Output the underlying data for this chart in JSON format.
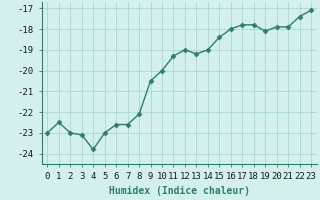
{
  "x": [
    0,
    1,
    2,
    3,
    4,
    5,
    6,
    7,
    8,
    9,
    10,
    11,
    12,
    13,
    14,
    15,
    16,
    17,
    18,
    19,
    20,
    21,
    22,
    23
  ],
  "y": [
    -23.0,
    -22.5,
    -23.0,
    -23.1,
    -23.8,
    -23.0,
    -22.6,
    -22.6,
    -22.1,
    -20.5,
    -20.0,
    -19.3,
    -19.0,
    -19.2,
    -19.0,
    -18.4,
    -18.0,
    -17.8,
    -17.8,
    -18.1,
    -17.9,
    -17.9,
    -17.4,
    -17.1
  ],
  "line_color": "#2e7d6e",
  "marker": "D",
  "markersize": 2.5,
  "linewidth": 1.0,
  "background_color": "#d4f0ec",
  "grid_color": "#a8d8d0",
  "xlabel": "Humidex (Indice chaleur)",
  "xlabel_fontsize": 7,
  "tick_fontsize": 6.5,
  "yticks": [
    -24,
    -23,
    -22,
    -21,
    -20,
    -19,
    -18,
    -17
  ],
  "ylim": [
    -24.5,
    -16.7
  ],
  "xlim": [
    -0.5,
    23.5
  ]
}
